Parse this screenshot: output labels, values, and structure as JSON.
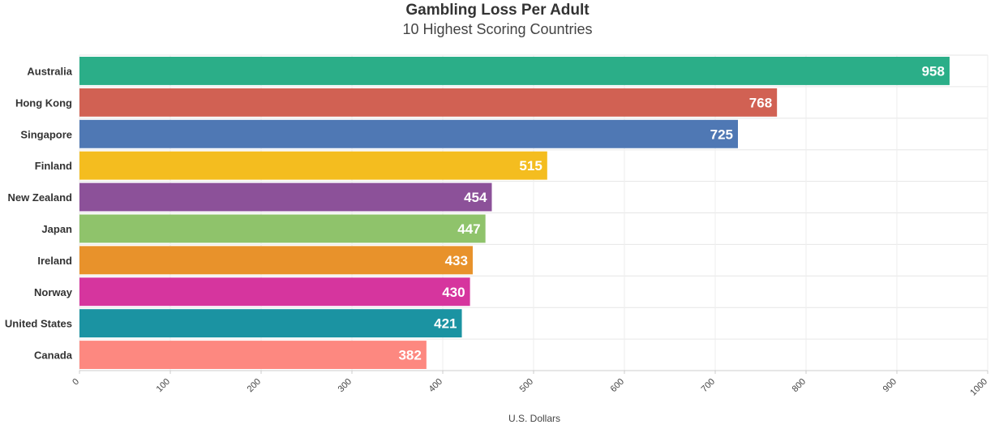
{
  "chart_data": {
    "type": "bar",
    "orientation": "horizontal",
    "title": "Gambling Loss Per Adult",
    "subtitle": "10 Highest Scoring Countries",
    "xlabel": "U.S. Dollars",
    "ylabel": "",
    "xlim": [
      0,
      1000
    ],
    "ticks": [
      "0",
      "100",
      "200",
      "300",
      "400",
      "500",
      "600",
      "700",
      "800",
      "900",
      "1000"
    ],
    "grid": true,
    "categories": [
      "Australia",
      "Hong Kong",
      "Singapore",
      "Finland",
      "New Zealand",
      "Japan",
      "Ireland",
      "Norway",
      "United States",
      "Canada"
    ],
    "values": [
      958,
      768,
      725,
      515,
      454,
      447,
      433,
      430,
      421,
      382
    ],
    "colors": [
      "#2bae88",
      "#d16153",
      "#4f78b4",
      "#f4bd1f",
      "#8c5199",
      "#8fc36b",
      "#e8922b",
      "#d6359e",
      "#1b93a2",
      "#fd8880"
    ]
  }
}
